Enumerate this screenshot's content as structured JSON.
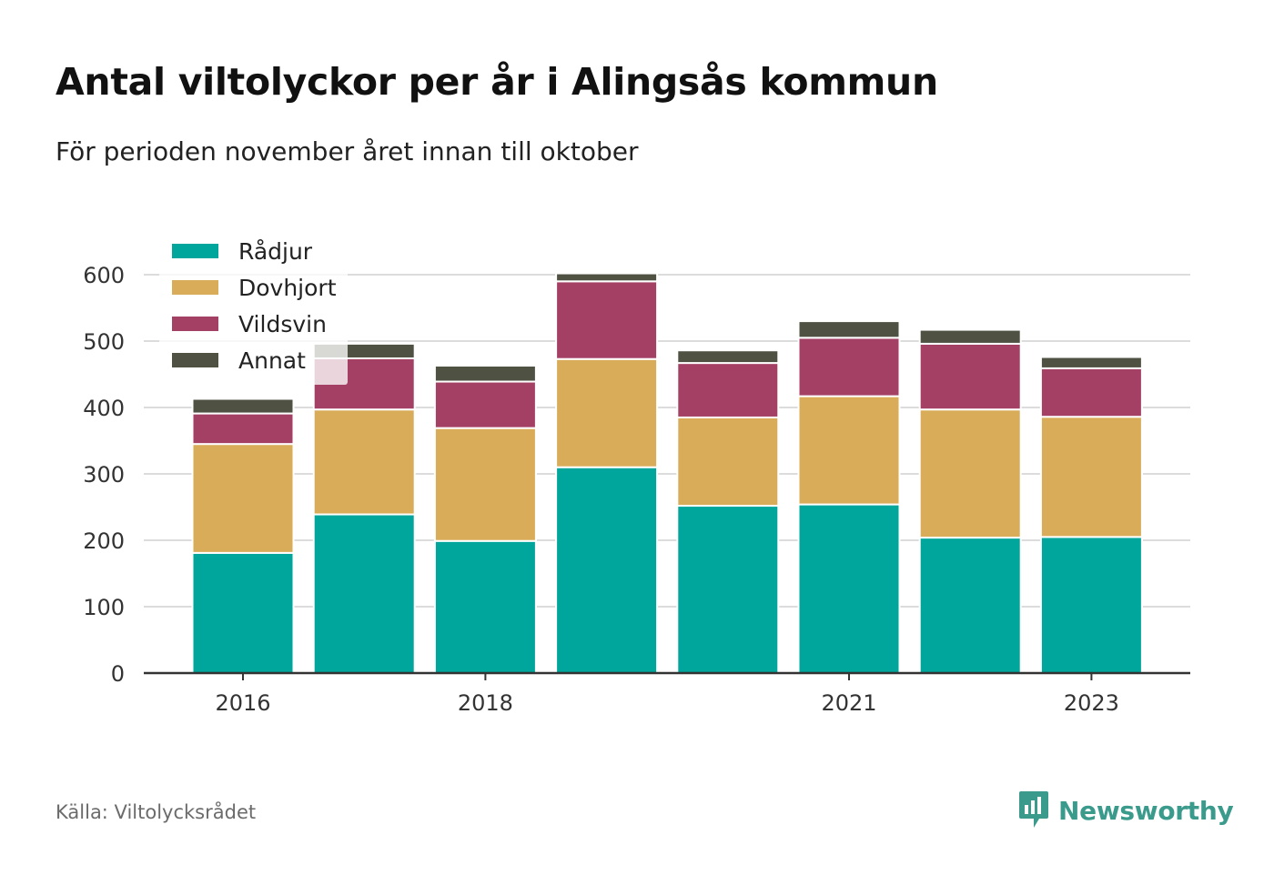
{
  "header": {
    "title": "Antal viltolyckor per år i Alingsås kommun",
    "subtitle": "För perioden november året innan till oktober"
  },
  "footer": {
    "source": "Källa: Viltolycksrådet",
    "brand": "Newsworthy",
    "brand_icon": "bar-chart-speech-bubble-icon",
    "brand_color": "#3a9a8c"
  },
  "chart_data": {
    "type": "bar",
    "stacked": true,
    "title": "Antal viltolyckor per år i Alingsås kommun",
    "subtitle": "För perioden november året innan till oktober",
    "categories": [
      "2016",
      "2017",
      "2018",
      "2019",
      "2020",
      "2021",
      "2022",
      "2023"
    ],
    "tick_labels": [
      "2016",
      "",
      "2018",
      "",
      "",
      "2021",
      "",
      "2023"
    ],
    "series": [
      {
        "name": "Rådjur",
        "color": "#00a59b",
        "values": [
          181,
          239,
          199,
          310,
          252,
          254,
          204,
          205
        ]
      },
      {
        "name": "Dovhjort",
        "color": "#d9ac5a",
        "values": [
          164,
          158,
          170,
          163,
          133,
          163,
          193,
          181
        ]
      },
      {
        "name": "Vildsvin",
        "color": "#a54065",
        "values": [
          46,
          77,
          70,
          117,
          82,
          88,
          99,
          73
        ]
      },
      {
        "name": "Annat",
        "color": "#4f5243",
        "values": [
          22,
          22,
          24,
          12,
          19,
          25,
          21,
          17
        ]
      }
    ],
    "y_ticks": [
      0,
      100,
      200,
      300,
      400,
      500,
      600
    ],
    "ylim": [
      0,
      600
    ],
    "xlabel": "",
    "ylabel": "",
    "grid": true,
    "legend_position": "top-left"
  }
}
